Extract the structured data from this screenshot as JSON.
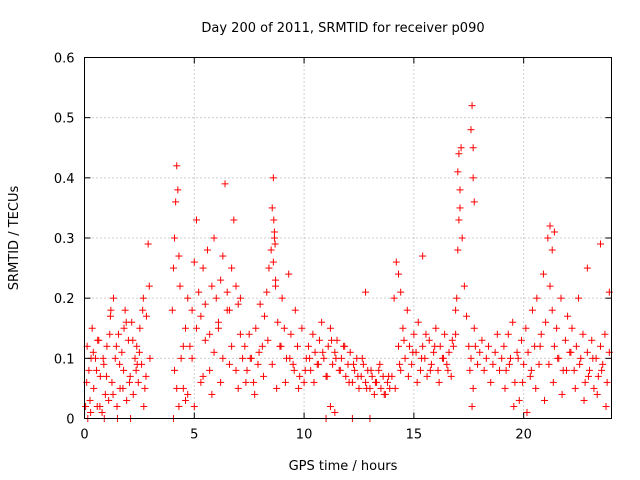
{
  "chart_data": {
    "type": "scatter",
    "title": "Day 200 of 2011, SRMTID for receiver p090",
    "xlabel": "GPS time / hours",
    "ylabel": "SRMTID / TECUs",
    "xlim": [
      0,
      24
    ],
    "ylim": [
      0,
      0.6
    ],
    "xticks": [
      0,
      5,
      10,
      15,
      20
    ],
    "yticks": [
      0,
      0.1,
      0.2,
      0.3,
      0.4,
      0.5,
      0.6
    ],
    "ytick_labels": [
      "0",
      "0.1",
      "0.2",
      "0.3",
      "0.4",
      "0.5",
      "0.6"
    ],
    "grid": true,
    "marker": "+",
    "color": "#ff0000",
    "series": [
      {
        "name": "SRMTID",
        "x": [
          0.05,
          0.12,
          0.2,
          0.28,
          0.35,
          0.42,
          0.5,
          0.58,
          0.65,
          0.72,
          0.8,
          0.88,
          0.95,
          1.02,
          1.1,
          1.18,
          1.25,
          1.32,
          1.4,
          1.48,
          1.55,
          1.62,
          1.7,
          1.78,
          1.85,
          1.92,
          2.0,
          2.08,
          2.15,
          2.22,
          2.3,
          2.38,
          2.45,
          2.52,
          2.6,
          2.68,
          2.75,
          2.82,
          2.9,
          2.98,
          0.1,
          0.25,
          0.4,
          0.55,
          0.7,
          0.85,
          1.0,
          1.15,
          1.3,
          1.45,
          1.6,
          1.75,
          1.9,
          2.05,
          2.2,
          2.35,
          2.5,
          2.65,
          2.8,
          2.95,
          0.15,
          0.3,
          0.6,
          0.9,
          1.2,
          1.5,
          1.8,
          2.1,
          2.4,
          2.7,
          4.0,
          4.05,
          4.1,
          4.15,
          4.2,
          4.25,
          4.3,
          4.35,
          4.4,
          4.5,
          4.6,
          4.7,
          4.8,
          4.9,
          5.0,
          5.1,
          5.2,
          5.3,
          5.4,
          5.5,
          5.6,
          5.7,
          5.8,
          5.9,
          6.0,
          6.1,
          6.2,
          6.3,
          6.4,
          6.5,
          6.6,
          6.7,
          6.8,
          6.9,
          7.0,
          7.1,
          7.2,
          4.1,
          4.3,
          4.5,
          4.7,
          4.9,
          5.1,
          5.3,
          5.5,
          5.7,
          5.9,
          6.1,
          6.3,
          6.5,
          6.7,
          6.9,
          7.1,
          4.05,
          4.2,
          4.6,
          5.0,
          5.4,
          5.8,
          6.2,
          6.6,
          7.0,
          7.3,
          7.4,
          7.5,
          7.6,
          7.7,
          7.8,
          7.9,
          8.0,
          8.1,
          8.2,
          8.3,
          8.4,
          8.5,
          8.55,
          8.6,
          8.65,
          8.7,
          8.8,
          8.9,
          9.0,
          9.1,
          9.2,
          9.3,
          9.4,
          9.5,
          9.6,
          9.7,
          9.8,
          9.9,
          7.35,
          7.55,
          7.75,
          7.95,
          8.15,
          8.35,
          8.55,
          8.75,
          8.95,
          9.15,
          9.35,
          9.55,
          9.75,
          8.6,
          8.62,
          8.65,
          8.68,
          8.7,
          10.0,
          10.1,
          10.2,
          10.3,
          10.4,
          10.5,
          10.6,
          10.7,
          10.8,
          10.9,
          11.0,
          11.1,
          11.2,
          11.3,
          11.4,
          11.5,
          11.6,
          11.7,
          11.8,
          11.9,
          12.0,
          12.1,
          12.2,
          12.3,
          12.4,
          12.5,
          12.6,
          12.7,
          12.8,
          12.9,
          13.0,
          13.1,
          13.2,
          13.3,
          13.4,
          13.5,
          13.6,
          13.7,
          13.8,
          13.9,
          14.0,
          10.05,
          10.25,
          10.45,
          10.65,
          10.85,
          11.05,
          11.25,
          11.45,
          11.65,
          11.85,
          12.05,
          12.25,
          12.45,
          12.65,
          12.85,
          13.05,
          13.25,
          13.45,
          13.65,
          13.85,
          11.0,
          11.2,
          11.4,
          12.2,
          12.8,
          13.0,
          14.1,
          14.2,
          14.3,
          14.4,
          14.5,
          14.6,
          14.7,
          14.8,
          14.9,
          15.0,
          15.1,
          15.2,
          15.3,
          15.4,
          15.5,
          15.6,
          15.7,
          15.8,
          15.9,
          16.0,
          16.1,
          16.2,
          16.3,
          16.4,
          16.5,
          16.6,
          16.7,
          16.8,
          14.15,
          14.35,
          14.55,
          14.75,
          14.95,
          15.15,
          15.35,
          15.55,
          15.75,
          15.95,
          16.15,
          16.35,
          16.55,
          16.75,
          14.3,
          14.4,
          15.4,
          16.9,
          16.9,
          16.95,
          17.0,
          17.05,
          17.1,
          17.15,
          17.2,
          17.3,
          17.4,
          17.5,
          17.55,
          17.6,
          17.65,
          17.7,
          17.75,
          17.8,
          17.9,
          18.0,
          18.1,
          18.2,
          18.3,
          18.4,
          18.5,
          18.6,
          18.7,
          18.8,
          18.9,
          19.0,
          17.0,
          17.05,
          17.1,
          17.6,
          17.65,
          17.7,
          17.7,
          17.75,
          19.1,
          19.2,
          19.3,
          19.4,
          19.5,
          19.6,
          19.7,
          19.8,
          19.9,
          20.0,
          20.1,
          20.2,
          20.3,
          20.4,
          20.5,
          20.6,
          20.7,
          20.8,
          20.9,
          21.0,
          21.1,
          21.2,
          21.3,
          21.4,
          21.5,
          21.6,
          21.7,
          21.8,
          21.9,
          22.0,
          22.1,
          22.2,
          22.3,
          22.4,
          22.5,
          22.6,
          22.7,
          22.8,
          22.9,
          23.0,
          23.1,
          23.2,
          23.3,
          23.4,
          23.5,
          23.6,
          23.7,
          23.8,
          23.9,
          19.15,
          19.35,
          19.55,
          19.75,
          19.95,
          20.15,
          20.35,
          20.55,
          20.75,
          20.95,
          21.15,
          21.35,
          21.55,
          21.75,
          21.95,
          22.15,
          22.35,
          22.55,
          22.75,
          22.95,
          23.15,
          23.35,
          23.55,
          23.75,
          21.2,
          21.3,
          21.4,
          22.9,
          23.5,
          23.9
        ],
        "y": [
          0.02,
          0.12,
          0.08,
          0.01,
          0.15,
          0.05,
          0.1,
          0.02,
          0.13,
          0.07,
          0.01,
          0.09,
          0.04,
          0.12,
          0.03,
          0.17,
          0.06,
          0.2,
          0.1,
          0.02,
          0.14,
          0.05,
          0.11,
          0.08,
          0.18,
          0.03,
          0.13,
          0.07,
          0.16,
          0.04,
          0.1,
          0.12,
          0.06,
          0.15,
          0.09,
          0.2,
          0.05,
          0.17,
          0.29,
          0.1,
          0.06,
          0.03,
          0.11,
          0.08,
          0.02,
          0.1,
          0.07,
          0.14,
          0.04,
          0.12,
          0.09,
          0.05,
          0.16,
          0.06,
          0.13,
          0.08,
          0.11,
          0.18,
          0.07,
          0.22,
          0.0,
          0.1,
          0.13,
          0.0,
          0.18,
          0.0,
          0.15,
          0.0,
          0.09,
          0.02,
          0.18,
          0.25,
          0.3,
          0.36,
          0.42,
          0.38,
          0.27,
          0.22,
          0.1,
          0.05,
          0.15,
          0.2,
          0.12,
          0.18,
          0.26,
          0.33,
          0.21,
          0.17,
          0.25,
          0.19,
          0.28,
          0.14,
          0.22,
          0.3,
          0.2,
          0.15,
          0.23,
          0.27,
          0.39,
          0.21,
          0.18,
          0.25,
          0.33,
          0.22,
          0.19,
          0.14,
          0.1,
          0.08,
          0.02,
          0.12,
          0.04,
          0.1,
          0.15,
          0.06,
          0.13,
          0.08,
          0.11,
          0.16,
          0.1,
          0.18,
          0.12,
          0.08,
          0.2,
          0.0,
          0.05,
          0.03,
          0.02,
          0.07,
          0.04,
          0.06,
          0.09,
          0.05,
          0.12,
          0.08,
          0.14,
          0.1,
          0.06,
          0.15,
          0.09,
          0.19,
          0.12,
          0.17,
          0.21,
          0.25,
          0.28,
          0.35,
          0.4,
          0.31,
          0.22,
          0.16,
          0.12,
          0.2,
          0.15,
          0.1,
          0.24,
          0.14,
          0.09,
          0.18,
          0.12,
          0.07,
          0.15,
          0.06,
          0.1,
          0.04,
          0.11,
          0.07,
          0.13,
          0.09,
          0.05,
          0.12,
          0.06,
          0.1,
          0.08,
          0.05,
          0.26,
          0.33,
          0.3,
          0.29,
          0.23,
          0.06,
          0.1,
          0.12,
          0.08,
          0.14,
          0.11,
          0.09,
          0.13,
          0.16,
          0.1,
          0.07,
          0.12,
          0.15,
          0.09,
          0.11,
          0.13,
          0.08,
          0.1,
          0.12,
          0.07,
          0.09,
          0.11,
          0.06,
          0.08,
          0.1,
          0.05,
          0.07,
          0.09,
          0.06,
          0.08,
          0.05,
          0.07,
          0.04,
          0.06,
          0.08,
          0.05,
          0.07,
          0.04,
          0.06,
          0.05,
          0.07,
          0.08,
          0.1,
          0.06,
          0.09,
          0.11,
          0.07,
          0.13,
          0.1,
          0.08,
          0.12,
          0.06,
          0.09,
          0.07,
          0.1,
          0.05,
          0.08,
          0.06,
          0.09,
          0.04,
          0.07,
          0.0,
          0.02,
          0.01,
          0.0,
          0.21,
          0.0,
          0.2,
          0.26,
          0.12,
          0.08,
          0.15,
          0.1,
          0.18,
          0.12,
          0.09,
          0.14,
          0.11,
          0.16,
          0.08,
          0.12,
          0.1,
          0.07,
          0.13,
          0.09,
          0.11,
          0.15,
          0.08,
          0.12,
          0.1,
          0.14,
          0.09,
          0.11,
          0.07,
          0.12,
          0.05,
          0.09,
          0.13,
          0.07,
          0.11,
          0.06,
          0.1,
          0.14,
          0.08,
          0.12,
          0.06,
          0.1,
          0.08,
          0.13,
          0.24,
          0.21,
          0.27,
          0.18,
          0.14,
          0.2,
          0.28,
          0.33,
          0.38,
          0.45,
          0.3,
          0.22,
          0.17,
          0.12,
          0.08,
          0.1,
          0.02,
          0.05,
          0.15,
          0.12,
          0.09,
          0.11,
          0.13,
          0.08,
          0.1,
          0.12,
          0.06,
          0.09,
          0.11,
          0.14,
          0.08,
          0.1,
          0.41,
          0.44,
          0.35,
          0.48,
          0.52,
          0.4,
          0.45,
          0.36,
          0.12,
          0.08,
          0.14,
          0.1,
          0.16,
          0.06,
          0.11,
          0.03,
          0.13,
          0.09,
          0.15,
          0.11,
          0.07,
          0.18,
          0.12,
          0.2,
          0.09,
          0.14,
          0.24,
          0.16,
          0.3,
          0.22,
          0.18,
          0.12,
          0.15,
          0.1,
          0.2,
          0.08,
          0.13,
          0.17,
          0.11,
          0.15,
          0.08,
          0.12,
          0.2,
          0.1,
          0.14,
          0.06,
          0.11,
          0.08,
          0.13,
          0.05,
          0.1,
          0.07,
          0.12,
          0.09,
          0.14,
          0.06,
          0.11,
          0.05,
          0.09,
          0.02,
          0.1,
          0.06,
          0.01,
          0.08,
          0.05,
          0.12,
          0.03,
          0.09,
          0.06,
          0.1,
          0.04,
          0.08,
          0.11,
          0.05,
          0.09,
          0.03,
          0.07,
          0.1,
          0.04,
          0.08,
          0.02,
          0.32,
          0.28,
          0.31,
          0.25,
          0.29,
          0.21
        ]
      }
    ]
  }
}
